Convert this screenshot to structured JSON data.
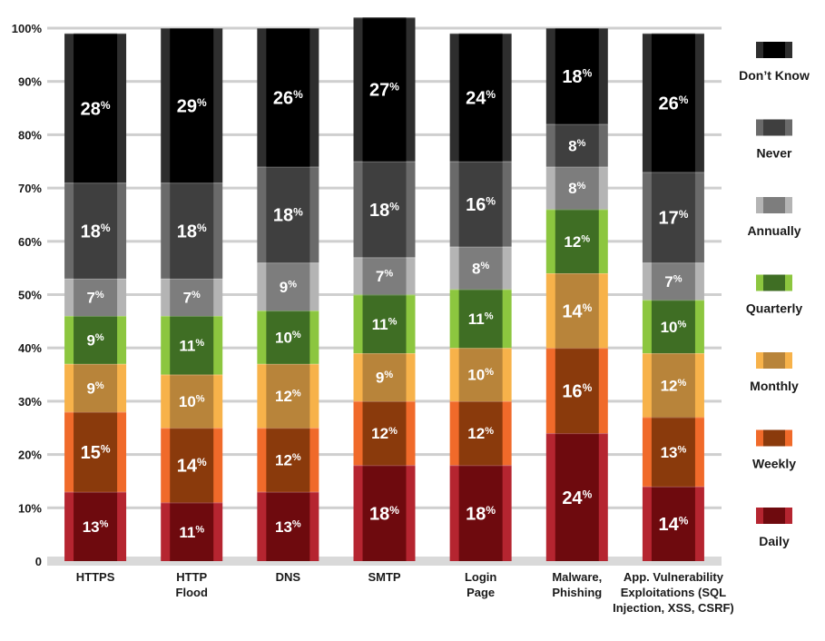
{
  "chart_data": {
    "type": "bar",
    "stacked": true,
    "title": "",
    "xlabel": "",
    "ylabel": "",
    "ylim": [
      0,
      100
    ],
    "yticks": [
      "0",
      "10%",
      "20%",
      "30%",
      "40%",
      "50%",
      "60%",
      "70%",
      "80%",
      "90%",
      "100%"
    ],
    "grid": true,
    "legend_position": "right",
    "categories": [
      [
        "HTTPS"
      ],
      [
        "HTTP",
        "Flood"
      ],
      [
        "DNS"
      ],
      [
        "SMTP"
      ],
      [
        "Login",
        "Page"
      ],
      [
        "Malware,",
        "Phishing"
      ],
      [
        "App. Vulnerability",
        "Exploitations (SQL",
        "Injection, XSS, CSRF)"
      ]
    ],
    "series": [
      {
        "name": "Daily",
        "values": [
          13,
          11,
          13,
          18,
          18,
          24,
          14
        ],
        "labels": [
          "13%",
          "11%",
          "13%",
          "18%",
          "18%",
          "24%",
          "14%"
        ],
        "color": "#6e0a0e",
        "edge": "#b52530"
      },
      {
        "name": "Weekly",
        "values": [
          15,
          14,
          12,
          12,
          12,
          16,
          13
        ],
        "labels": [
          "15%",
          "14%",
          "12%",
          "12%",
          "12%",
          "16%",
          "13%"
        ],
        "color": "#8a3a0c",
        "edge": "#f06a2a"
      },
      {
        "name": "Monthly",
        "values": [
          9,
          10,
          12,
          9,
          10,
          14,
          12
        ],
        "labels": [
          "9%",
          "10%",
          "12%",
          "9%",
          "10%",
          "14%",
          "12%"
        ],
        "color": "#b8843a",
        "edge": "#f7b24a"
      },
      {
        "name": "Quarterly",
        "values": [
          9,
          11,
          10,
          11,
          11,
          12,
          10
        ],
        "labels": [
          "9%",
          "11%",
          "10%",
          "11%",
          "11%",
          "12%",
          "10%"
        ],
        "color": "#3f6e24",
        "edge": "#8cc63f"
      },
      {
        "name": "Annually",
        "values": [
          7,
          7,
          9,
          7,
          8,
          8,
          7
        ],
        "labels": [
          "7%",
          "7%",
          "9%",
          "7%",
          "8%",
          "8%",
          "7%"
        ],
        "color": "#7d7d7d",
        "edge": "#b4b4b4"
      },
      {
        "name": "Never",
        "values": [
          18,
          18,
          18,
          18,
          16,
          8,
          17
        ],
        "labels": [
          "18%",
          "18%",
          "18%",
          "18%",
          "16%",
          "8%",
          "17%"
        ],
        "color": "#3f3f3f",
        "edge": "#6a6a6a"
      },
      {
        "name": "Don’t Know",
        "values": [
          28,
          29,
          26,
          27,
          24,
          18,
          26
        ],
        "labels": [
          "28%",
          "29%",
          "26%",
          "27%",
          "24%",
          "18%",
          "26%"
        ],
        "color": "#000000",
        "edge": "#2e2e2e"
      }
    ]
  }
}
